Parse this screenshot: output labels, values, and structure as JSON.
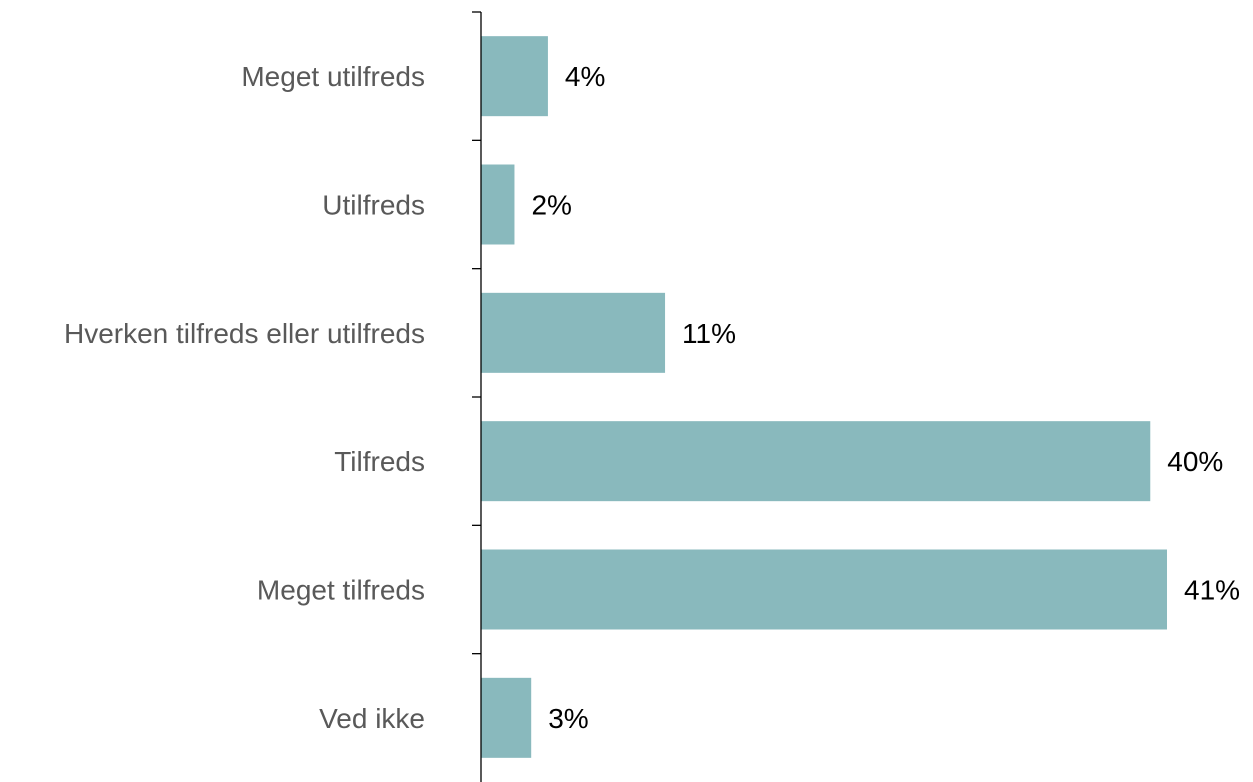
{
  "chart_data": {
    "type": "bar",
    "orientation": "horizontal",
    "categories": [
      "Meget utilfreds",
      "Utilfreds",
      "Hverken tilfreds eller utilfreds",
      "Tilfreds",
      "Meget tilfreds",
      "Ved ikke"
    ],
    "values": [
      4,
      2,
      11,
      40,
      41,
      3
    ],
    "value_labels": [
      "4%",
      "2%",
      "11%",
      "40%",
      "41%",
      "3%"
    ],
    "unit": "%",
    "xlim": [
      0,
      41
    ],
    "grid": false,
    "legend": "none",
    "colors": {
      "bar": "#89b9bd",
      "axis": "#000000",
      "category_text": "#595959",
      "value_text": "#000000"
    }
  }
}
